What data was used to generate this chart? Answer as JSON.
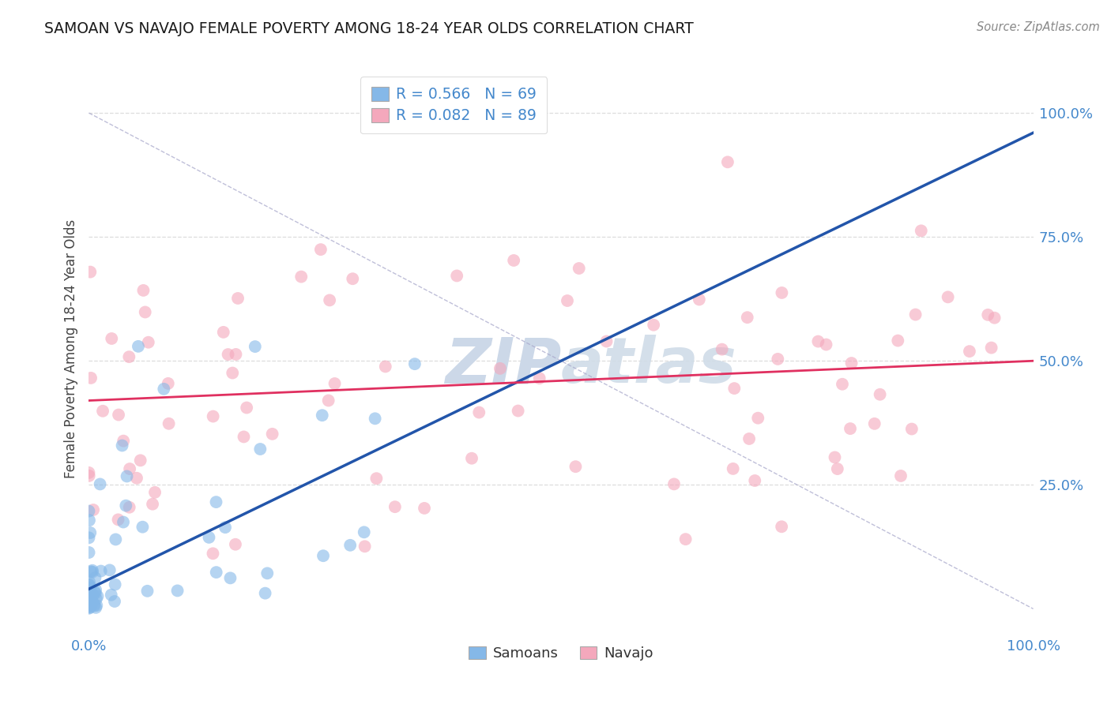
{
  "title": "SAMOAN VS NAVAJO FEMALE POVERTY AMONG 18-24 YEAR OLDS CORRELATION CHART",
  "source_text": "Source: ZipAtlas.com",
  "ylabel": "Female Poverty Among 18-24 Year Olds",
  "xlim": [
    0.0,
    1.0
  ],
  "ylim": [
    -0.05,
    1.1
  ],
  "legend_samoans_R": "R = 0.566",
  "legend_samoans_N": "N = 69",
  "legend_navajo_R": "R = 0.082",
  "legend_navajo_N": "N = 89",
  "legend_label_samoans": "Samoans",
  "legend_label_navajo": "Navajo",
  "blue_color": "#85b8e8",
  "pink_color": "#f4a8bc",
  "blue_line_color": "#2255aa",
  "pink_line_color": "#e03060",
  "dashed_line_color": "#aaaacc",
  "grid_color": "#dddddd",
  "axis_tick_color": "#4488cc",
  "watermark_color": "#ccd8e8",
  "background_color": "#ffffff",
  "blue_intercept": 0.04,
  "blue_slope": 0.92,
  "pink_intercept": 0.42,
  "pink_slope": 0.08
}
